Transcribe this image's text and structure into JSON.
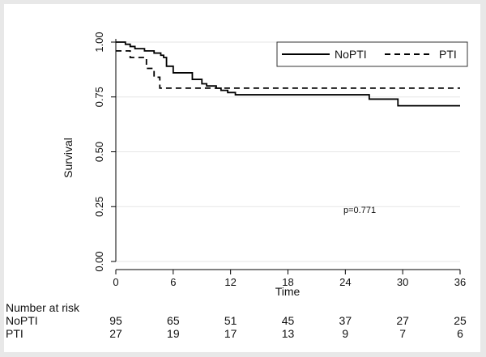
{
  "chart_data": {
    "type": "line",
    "title": "",
    "xlabel": "Time",
    "ylabel": "Survival",
    "xlim": [
      0,
      36
    ],
    "ylim": [
      0,
      1
    ],
    "x_ticks": [
      0,
      6,
      12,
      18,
      24,
      30,
      36
    ],
    "y_ticks": [
      "0.00",
      "0.25",
      "0.50",
      "0.75",
      "1.00"
    ],
    "grid": true,
    "legend_position": "top-right",
    "series": [
      {
        "name": "NoPTI",
        "style": "solid",
        "color": "#000000",
        "x": [
          0,
          1,
          1.5,
          2,
          3,
          4,
          4.7,
          5,
          5.3,
          6,
          8,
          9,
          9.5,
          10.5,
          11,
          11.7,
          12.5,
          26.5,
          29.5,
          36
        ],
        "y": [
          1.0,
          0.99,
          0.98,
          0.97,
          0.96,
          0.95,
          0.94,
          0.93,
          0.89,
          0.86,
          0.83,
          0.81,
          0.8,
          0.79,
          0.78,
          0.77,
          0.76,
          0.74,
          0.71,
          0.71
        ]
      },
      {
        "name": "PTI",
        "style": "dashed",
        "color": "#000000",
        "x": [
          0,
          1.5,
          3.2,
          4.0,
          4.6,
          36
        ],
        "y": [
          0.96,
          0.93,
          0.88,
          0.84,
          0.79,
          0.79
        ]
      }
    ],
    "annotation": "p=0.771",
    "risk_table": {
      "title": "Number at risk",
      "rows": [
        {
          "label": "NoPTI",
          "values": [
            95,
            65,
            51,
            45,
            37,
            27,
            25
          ]
        },
        {
          "label": "PTI",
          "values": [
            27,
            19,
            17,
            13,
            9,
            7,
            6
          ]
        }
      ]
    }
  }
}
